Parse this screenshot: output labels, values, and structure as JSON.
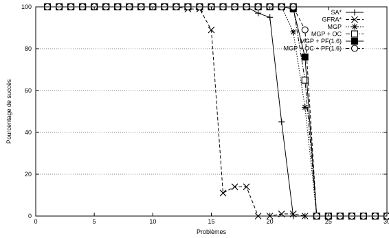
{
  "chart_data": {
    "type": "line",
    "title": "",
    "xlabel": "Problèmes",
    "ylabel": "Pourcentage de succès",
    "xlim": [
      0,
      30
    ],
    "ylim": [
      0,
      100
    ],
    "xticks": [
      0,
      5,
      10,
      15,
      20,
      25,
      30
    ],
    "yticks": [
      0,
      20,
      40,
      60,
      80,
      100
    ],
    "xtick_labels": [
      "0",
      "5",
      "10",
      "15",
      "20",
      "25",
      "30"
    ],
    "ytick_labels": [
      "0",
      "20",
      "40",
      "60",
      "80",
      "100"
    ],
    "grid": "horizontal dotted",
    "legend_position": "top-right",
    "series": [
      {
        "name": "SA*",
        "line": "solid",
        "marker": "plus",
        "x": [
          1,
          2,
          3,
          4,
          5,
          6,
          7,
          8,
          9,
          10,
          11,
          12,
          13,
          14,
          15,
          16,
          17,
          18,
          19,
          20,
          21,
          22,
          23,
          24,
          25,
          26,
          27,
          28,
          29,
          30
        ],
        "y": [
          100,
          100,
          100,
          100,
          100,
          100,
          100,
          100,
          100,
          100,
          100,
          100,
          100,
          100,
          100,
          100,
          100,
          100,
          97,
          95,
          45,
          0,
          0,
          0,
          0,
          0,
          0,
          0,
          0,
          0
        ]
      },
      {
        "name": "GFRA*",
        "line": "dashed",
        "marker": "x",
        "x": [
          1,
          2,
          3,
          4,
          5,
          6,
          7,
          8,
          9,
          10,
          11,
          12,
          13,
          14,
          15,
          16,
          17,
          18,
          19,
          20,
          21,
          22,
          23,
          24,
          25,
          26,
          27,
          28,
          29,
          30
        ],
        "y": [
          100,
          100,
          100,
          100,
          100,
          100,
          100,
          100,
          100,
          100,
          100,
          100,
          99,
          99,
          89,
          11,
          14,
          14,
          0,
          0,
          1,
          1,
          0,
          0,
          0,
          0,
          0,
          0,
          0,
          0
        ]
      },
      {
        "name": "MGP",
        "line": "dotted",
        "marker": "star",
        "x": [
          1,
          2,
          3,
          4,
          5,
          6,
          7,
          8,
          9,
          10,
          11,
          12,
          13,
          14,
          15,
          16,
          17,
          18,
          19,
          20,
          21,
          22,
          23,
          24,
          25,
          26,
          27,
          28,
          29,
          30
        ],
        "y": [
          100,
          100,
          100,
          100,
          100,
          100,
          100,
          100,
          100,
          100,
          100,
          100,
          100,
          100,
          100,
          100,
          100,
          100,
          100,
          100,
          100,
          88,
          52,
          0,
          0,
          0,
          0,
          0,
          0,
          0
        ]
      },
      {
        "name": "MGP + OC",
        "line": "dash-dot",
        "marker": "open-square",
        "x": [
          1,
          2,
          3,
          4,
          5,
          6,
          7,
          8,
          9,
          10,
          11,
          12,
          13,
          14,
          15,
          16,
          17,
          18,
          19,
          20,
          21,
          22,
          23,
          24,
          25,
          26,
          27,
          28,
          29,
          30
        ],
        "y": [
          100,
          100,
          100,
          100,
          100,
          100,
          100,
          100,
          100,
          100,
          100,
          100,
          100,
          100,
          100,
          100,
          100,
          100,
          100,
          100,
          100,
          100,
          65,
          0,
          0,
          0,
          0,
          0,
          0,
          0
        ]
      },
      {
        "name": "MGP + PF(1.6)",
        "line": "solid",
        "marker": "filled-square",
        "x": [
          1,
          2,
          3,
          4,
          5,
          6,
          7,
          8,
          9,
          10,
          11,
          12,
          13,
          14,
          15,
          16,
          17,
          18,
          19,
          20,
          21,
          22,
          23,
          24,
          25,
          26,
          27,
          28,
          29,
          30
        ],
        "y": [
          100,
          100,
          100,
          100,
          100,
          100,
          100,
          100,
          100,
          100,
          100,
          100,
          100,
          100,
          100,
          100,
          100,
          100,
          100,
          100,
          100,
          99,
          76,
          0,
          0,
          0,
          0,
          0,
          0,
          0
        ]
      },
      {
        "name": "MGP + OC + PF(1.6)",
        "line": "dashed",
        "marker": "open-circle",
        "x": [
          1,
          2,
          3,
          4,
          5,
          6,
          7,
          8,
          9,
          10,
          11,
          12,
          13,
          14,
          15,
          16,
          17,
          18,
          19,
          20,
          21,
          22,
          23,
          24,
          25,
          26,
          27,
          28,
          29,
          30
        ],
        "y": [
          100,
          100,
          100,
          100,
          100,
          100,
          100,
          100,
          100,
          100,
          100,
          100,
          100,
          100,
          100,
          100,
          100,
          100,
          100,
          100,
          100,
          100,
          89,
          0,
          0,
          0,
          0,
          0,
          0,
          0
        ]
      }
    ]
  }
}
